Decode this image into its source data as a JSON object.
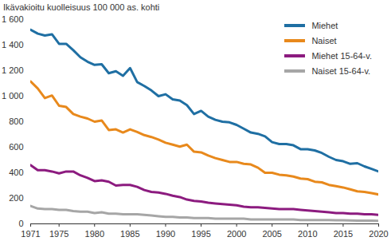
{
  "chart_data": {
    "type": "line",
    "title": "Ikävakioitu kuolleisuus 100 000 as. kohti",
    "x": [
      1971,
      1972,
      1973,
      1974,
      1975,
      1976,
      1977,
      1978,
      1979,
      1980,
      1981,
      1982,
      1983,
      1984,
      1985,
      1986,
      1987,
      1988,
      1989,
      1990,
      1991,
      1992,
      1993,
      1994,
      1995,
      1996,
      1997,
      1998,
      1999,
      2000,
      2001,
      2002,
      2003,
      2004,
      2005,
      2006,
      2007,
      2008,
      2009,
      2010,
      2011,
      2012,
      2013,
      2014,
      2015,
      2016,
      2017,
      2018,
      2019,
      2020
    ],
    "series": [
      {
        "name": "Miehet",
        "color": "#1f6fa3",
        "values": [
          1520,
          1490,
          1475,
          1485,
          1410,
          1410,
          1360,
          1305,
          1270,
          1245,
          1250,
          1180,
          1195,
          1160,
          1220,
          1110,
          1080,
          1045,
          1000,
          1015,
          975,
          965,
          930,
          860,
          885,
          840,
          815,
          800,
          795,
          775,
          745,
          715,
          705,
          685,
          640,
          625,
          625,
          615,
          585,
          585,
          575,
          555,
          525,
          500,
          490,
          470,
          475,
          450,
          430,
          410
        ]
      },
      {
        "name": "Naiset",
        "color": "#e8891c",
        "values": [
          1115,
          1060,
          985,
          1005,
          925,
          915,
          860,
          840,
          825,
          800,
          810,
          735,
          740,
          715,
          740,
          720,
          695,
          680,
          660,
          635,
          620,
          605,
          620,
          565,
          560,
          535,
          515,
          500,
          485,
          485,
          470,
          465,
          440,
          400,
          400,
          385,
          380,
          370,
          355,
          350,
          330,
          325,
          305,
          295,
          285,
          270,
          255,
          250,
          240,
          230
        ]
      },
      {
        "name": "Miehet 15-64-v.",
        "color": "#8c1b7f",
        "values": [
          460,
          420,
          420,
          410,
          395,
          410,
          410,
          380,
          360,
          335,
          340,
          330,
          300,
          305,
          305,
          290,
          265,
          250,
          245,
          235,
          220,
          210,
          190,
          180,
          175,
          165,
          160,
          155,
          150,
          145,
          135,
          130,
          130,
          125,
          120,
          115,
          115,
          115,
          110,
          105,
          100,
          95,
          90,
          85,
          85,
          80,
          80,
          75,
          75,
          70
        ]
      },
      {
        "name": "Naiset 15-64-v.",
        "color": "#a6a6a6",
        "values": [
          140,
          120,
          115,
          115,
          110,
          110,
          100,
          95,
          95,
          85,
          90,
          80,
          80,
          75,
          75,
          75,
          70,
          65,
          60,
          55,
          55,
          50,
          50,
          45,
          45,
          45,
          40,
          40,
          40,
          40,
          40,
          35,
          35,
          35,
          35,
          35,
          35,
          35,
          30,
          30,
          30,
          30,
          30,
          28,
          28,
          26,
          25,
          25,
          25,
          24
        ]
      }
    ],
    "xlim": [
      1971,
      2020
    ],
    "xticks": [
      1971,
      1975,
      1980,
      1985,
      1990,
      1995,
      2000,
      2005,
      2010,
      2015,
      2020
    ],
    "ylim": [
      0,
      1600
    ],
    "yticks": [
      0,
      200,
      400,
      600,
      800,
      {
        "value": 1000,
        "label": "1 000"
      },
      {
        "value": 1200,
        "label": "1 200"
      },
      {
        "value": 1400,
        "label": "1 400"
      },
      {
        "value": 1600,
        "label": "1 600"
      }
    ],
    "grid": false,
    "legend": "top-right"
  }
}
